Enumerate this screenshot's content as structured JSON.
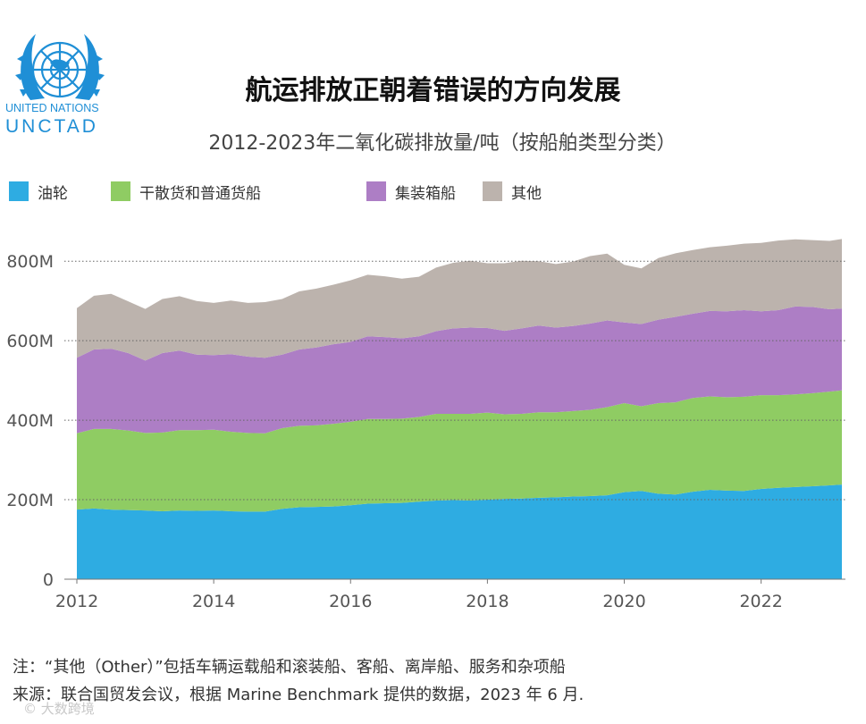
{
  "header": {
    "org_line1": "UNITED NATIONS",
    "org_line2": "UNCTAD",
    "title": "航运排放正朝着错误的方向发展",
    "subtitle": "2012-2023年二氧化碳排放量/吨（按船舶类型分类）"
  },
  "colors": {
    "tanker": "#2eace2",
    "bulk": "#8fcc63",
    "container": "#ad7ec5",
    "other": "#bcb3ad",
    "gridline": "#666666",
    "logo": "#1f8fd6"
  },
  "icons": {
    "logo": "un-emblem-icon"
  },
  "chart_data": {
    "type": "area",
    "stacked": true,
    "title": "2012-2023年二氧化碳排放量/吨（按船舶类型分类）",
    "xlabel": "",
    "ylabel": "",
    "xlim": [
      2012,
      2023.18
    ],
    "ylim": [
      0,
      850
    ],
    "x_ticks": [
      2012,
      2014,
      2016,
      2018,
      2020,
      2022
    ],
    "x_tick_labels": [
      "2012",
      "2014",
      "2016",
      "2018",
      "2020",
      "2022"
    ],
    "y_ticks": [
      0,
      200,
      400,
      600,
      800
    ],
    "y_tick_labels": [
      "0",
      "200M",
      "400M",
      "600M",
      "800M"
    ],
    "grid": "horizontal dotted",
    "legend_position": "top",
    "x": [
      2012.0,
      2012.25,
      2012.5,
      2012.75,
      2013.0,
      2013.25,
      2013.5,
      2013.75,
      2014.0,
      2014.25,
      2014.5,
      2014.75,
      2015.0,
      2015.25,
      2015.5,
      2015.75,
      2016.0,
      2016.25,
      2016.5,
      2016.75,
      2017.0,
      2017.25,
      2017.5,
      2017.75,
      2018.0,
      2018.25,
      2018.5,
      2018.75,
      2019.0,
      2019.25,
      2019.5,
      2019.75,
      2020.0,
      2020.25,
      2020.5,
      2020.75,
      2021.0,
      2021.25,
      2021.5,
      2021.75,
      2022.0,
      2022.25,
      2022.5,
      2022.75,
      2023.0,
      2023.18
    ],
    "series": [
      {
        "name": "油轮",
        "values": [
          175,
          178,
          175,
          174,
          173,
          171,
          173,
          172,
          173,
          171,
          170,
          170,
          177,
          181,
          182,
          183,
          186,
          190,
          191,
          192,
          195,
          198,
          199,
          198,
          200,
          202,
          203,
          205,
          206,
          208,
          209,
          211,
          219,
          222,
          215,
          213,
          220,
          225,
          223,
          222,
          227,
          230,
          232,
          234,
          236,
          238
        ]
      },
      {
        "name": "干散货和普通货船",
        "values": [
          192,
          200,
          203,
          200,
          195,
          198,
          202,
          203,
          203,
          200,
          198,
          197,
          203,
          205,
          205,
          208,
          210,
          213,
          212,
          212,
          213,
          218,
          217,
          218,
          219,
          213,
          213,
          215,
          214,
          215,
          217,
          222,
          224,
          213,
          228,
          232,
          236,
          235,
          235,
          237,
          236,
          233,
          233,
          234,
          236,
          237
        ]
      },
      {
        "name": "集装箱船",
        "values": [
          190,
          200,
          202,
          195,
          182,
          200,
          200,
          190,
          188,
          195,
          192,
          190,
          185,
          192,
          196,
          200,
          201,
          208,
          206,
          202,
          203,
          208,
          215,
          217,
          213,
          210,
          215,
          218,
          213,
          214,
          217,
          218,
          203,
          207,
          210,
          215,
          212,
          215,
          216,
          218,
          211,
          214,
          221,
          217,
          207,
          206
        ]
      },
      {
        "name": "其他",
        "values": [
          125,
          135,
          138,
          130,
          130,
          136,
          137,
          135,
          131,
          135,
          135,
          140,
          140,
          146,
          148,
          150,
          155,
          155,
          153,
          150,
          150,
          160,
          165,
          168,
          163,
          170,
          170,
          162,
          160,
          162,
          170,
          168,
          145,
          140,
          155,
          160,
          160,
          160,
          165,
          167,
          172,
          175,
          169,
          168,
          172,
          175
        ]
      }
    ]
  },
  "notes": {
    "line1": "注：“其他（Other）”包括车辆运载船和滚装船、客船、离岸船、服务和杂项船",
    "line2": "来源：联合国贸发会议，根据 Marine Benchmark 提供的数据，2023 年 6 月.",
    "watermark": "© 大数跨境"
  }
}
